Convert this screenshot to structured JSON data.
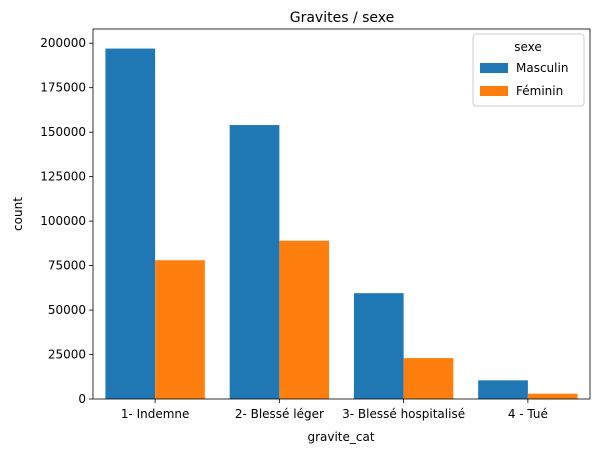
{
  "chart_data": {
    "type": "bar",
    "title": "Gravites / sexe",
    "xlabel": "gravite_cat",
    "ylabel": "count",
    "categories": [
      "1- Indemne",
      "2- Blessé léger",
      "3- Blessé hospitalisé",
      "4 - Tué"
    ],
    "series": [
      {
        "name": "Masculin",
        "color": "#1f77b4",
        "values": [
          197000,
          154000,
          59500,
          10500
        ]
      },
      {
        "name": "Féminin",
        "color": "#ff7f0e",
        "values": [
          78000,
          89000,
          23000,
          3000
        ]
      }
    ],
    "ylim": [
      0,
      208000
    ],
    "yticks": [
      0,
      25000,
      50000,
      75000,
      100000,
      125000,
      150000,
      175000,
      200000
    ],
    "legend": {
      "title": "sexe",
      "placement": "top-right"
    },
    "grid": false
  }
}
